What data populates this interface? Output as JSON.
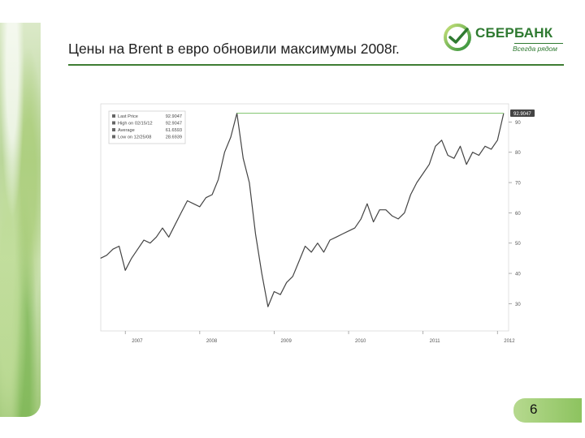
{
  "slide": {
    "title": "Цены на Brent в евро обновили максимумы 2008г.",
    "number": "6"
  },
  "logo": {
    "name": "СБЕРБАНК",
    "tagline": "Всегда рядом",
    "color": "#2f7a31"
  },
  "chart_data": {
    "type": "line",
    "title": "",
    "xlabel": "",
    "ylabel": "",
    "x_ticks": [
      "2007",
      "2008",
      "2009",
      "2010",
      "2011",
      "2012"
    ],
    "y_ticks": [
      30,
      40,
      50,
      60,
      70,
      80,
      90
    ],
    "ylim": [
      21,
      96
    ],
    "y_axis_side": "right",
    "grid": false,
    "legend": {
      "placement": "top-left",
      "entries": [
        {
          "label": "Last Price",
          "value": "92.9047"
        },
        {
          "label": "High on 02/15/12",
          "value": "92.9047"
        },
        {
          "label": "Average",
          "value": "61.6593"
        },
        {
          "label": "Low on 12/25/08",
          "value": "28.6939"
        }
      ]
    },
    "last_price_marker": "92.9047",
    "high_line_value": 92.9047,
    "series": [
      {
        "color": "#444444",
        "points": [
          [
            "2006-09",
            45
          ],
          [
            "2006-10",
            46
          ],
          [
            "2006-11",
            48
          ],
          [
            "2006-12",
            49
          ],
          [
            "2007-01",
            41
          ],
          [
            "2007-02",
            45
          ],
          [
            "2007-03",
            48
          ],
          [
            "2007-04",
            51
          ],
          [
            "2007-05",
            50
          ],
          [
            "2007-06",
            52
          ],
          [
            "2007-07",
            55
          ],
          [
            "2007-08",
            52
          ],
          [
            "2007-09",
            56
          ],
          [
            "2007-10",
            60
          ],
          [
            "2007-11",
            64
          ],
          [
            "2007-12",
            63
          ],
          [
            "2008-01",
            62
          ],
          [
            "2008-02",
            65
          ],
          [
            "2008-03",
            66
          ],
          [
            "2008-04",
            71
          ],
          [
            "2008-05",
            80
          ],
          [
            "2008-06",
            85
          ],
          [
            "2008-07",
            92.9
          ],
          [
            "2008-08",
            78
          ],
          [
            "2008-09",
            70
          ],
          [
            "2008-10",
            53
          ],
          [
            "2008-11",
            40
          ],
          [
            "2008-12",
            29
          ],
          [
            "2009-01",
            34
          ],
          [
            "2009-02",
            33
          ],
          [
            "2009-03",
            37
          ],
          [
            "2009-04",
            39
          ],
          [
            "2009-05",
            44
          ],
          [
            "2009-06",
            49
          ],
          [
            "2009-07",
            47
          ],
          [
            "2009-08",
            50
          ],
          [
            "2009-09",
            47
          ],
          [
            "2009-10",
            51
          ],
          [
            "2009-11",
            52
          ],
          [
            "2009-12",
            53
          ],
          [
            "2010-01",
            54
          ],
          [
            "2010-02",
            55
          ],
          [
            "2010-03",
            58
          ],
          [
            "2010-04",
            63
          ],
          [
            "2010-05",
            57
          ],
          [
            "2010-06",
            61
          ],
          [
            "2010-07",
            61
          ],
          [
            "2010-08",
            59
          ],
          [
            "2010-09",
            58
          ],
          [
            "2010-10",
            60
          ],
          [
            "2010-11",
            66
          ],
          [
            "2010-12",
            70
          ],
          [
            "2011-01",
            73
          ],
          [
            "2011-02",
            76
          ],
          [
            "2011-03",
            82
          ],
          [
            "2011-04",
            84
          ],
          [
            "2011-05",
            79
          ],
          [
            "2011-06",
            78
          ],
          [
            "2011-07",
            82
          ],
          [
            "2011-08",
            76
          ],
          [
            "2011-09",
            80
          ],
          [
            "2011-10",
            79
          ],
          [
            "2011-11",
            82
          ],
          [
            "2011-12",
            81
          ],
          [
            "2012-01",
            84
          ],
          [
            "2012-02",
            92.9
          ]
        ]
      },
      {
        "color": "#7cc36a",
        "points": [
          [
            "2008-07",
            92.9
          ],
          [
            "2012-02",
            92.9
          ]
        ]
      }
    ]
  }
}
